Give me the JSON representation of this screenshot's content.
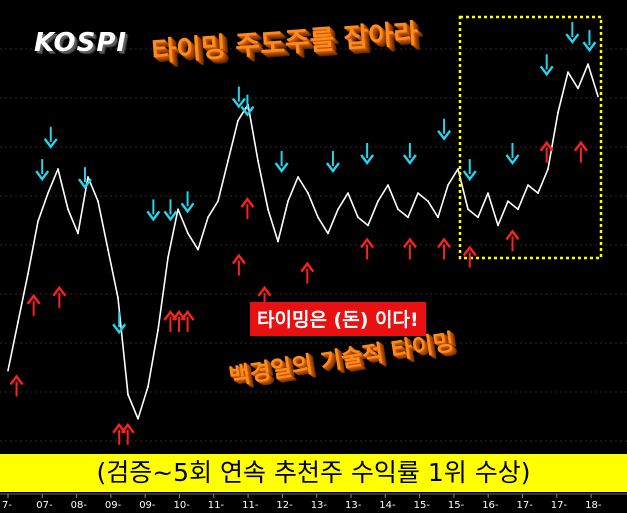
{
  "chart_data": {
    "type": "line",
    "title": "KOSPI",
    "xlabel": "",
    "ylabel": "",
    "x_tick_labels": [
      "7-",
      "07-",
      "08-",
      "09-",
      "09-",
      "10-",
      "11-",
      "11-",
      "12-",
      "13-",
      "13-",
      "14-",
      "15-",
      "15-",
      "16-",
      "17-",
      "17-",
      "18-"
    ],
    "ylim": [
      0,
      100
    ],
    "grid": true,
    "series": [
      {
        "values": [
          18,
          30,
          42,
          55,
          62,
          68,
          58,
          52,
          66,
          60,
          48,
          36,
          12,
          6,
          14,
          28,
          46,
          58,
          52,
          48,
          56,
          60,
          70,
          80,
          84,
          70,
          58,
          50,
          60,
          66,
          62,
          56,
          52,
          58,
          62,
          56,
          54,
          60,
          64,
          58,
          56,
          62,
          60,
          56,
          64,
          68,
          58,
          56,
          62,
          54,
          60,
          58,
          64,
          62,
          68,
          82,
          92,
          88,
          94,
          86
        ]
      }
    ],
    "signals": {
      "buy": [
        {
          "x": 1,
          "y": 18
        },
        {
          "x": 3,
          "y": 38
        },
        {
          "x": 6,
          "y": 40
        },
        {
          "x": 13,
          "y": 6
        },
        {
          "x": 14,
          "y": 6
        },
        {
          "x": 19,
          "y": 34
        },
        {
          "x": 20,
          "y": 34
        },
        {
          "x": 21,
          "y": 34
        },
        {
          "x": 27,
          "y": 48
        },
        {
          "x": 28,
          "y": 62
        },
        {
          "x": 30,
          "y": 40
        },
        {
          "x": 35,
          "y": 46
        },
        {
          "x": 42,
          "y": 52
        },
        {
          "x": 47,
          "y": 52
        },
        {
          "x": 51,
          "y": 52
        },
        {
          "x": 54,
          "y": 50
        },
        {
          "x": 59,
          "y": 54
        },
        {
          "x": 63,
          "y": 76
        },
        {
          "x": 67,
          "y": 76
        }
      ],
      "sell": [
        {
          "x": 4,
          "y": 64
        },
        {
          "x": 5,
          "y": 72
        },
        {
          "x": 9,
          "y": 62
        },
        {
          "x": 13,
          "y": 26
        },
        {
          "x": 17,
          "y": 54
        },
        {
          "x": 19,
          "y": 54
        },
        {
          "x": 21,
          "y": 56
        },
        {
          "x": 27,
          "y": 82
        },
        {
          "x": 28,
          "y": 80
        },
        {
          "x": 32,
          "y": 66
        },
        {
          "x": 38,
          "y": 66
        },
        {
          "x": 42,
          "y": 68
        },
        {
          "x": 47,
          "y": 68
        },
        {
          "x": 51,
          "y": 74
        },
        {
          "x": 54,
          "y": 64
        },
        {
          "x": 59,
          "y": 68
        },
        {
          "x": 63,
          "y": 90
        },
        {
          "x": 66,
          "y": 98
        },
        {
          "x": 68,
          "y": 96
        }
      ]
    }
  },
  "labels": {
    "kospi": "KOSPI",
    "headline": "타이밍 주도주를 잡아라",
    "promo": "타이밍은 (돈) 이다!",
    "subline": "백경일의 기술적 타이밍",
    "award": "(검증~5회 연속 추천주 수익률 1위 수상)"
  },
  "colors": {
    "background": "#000000",
    "line": "#ffffff",
    "grid": "#2a2a2a",
    "buy_arrow": "#ff2020",
    "sell_arrow": "#22d6ee",
    "highlight_box": "#ffff00",
    "award_bg": "#ffff00",
    "promo_bg": "#e81010",
    "headline_text": "#ff8a1e"
  },
  "icons": {
    "buy": "red-up-arrow-icon",
    "sell": "cyan-down-arrow-icon"
  }
}
